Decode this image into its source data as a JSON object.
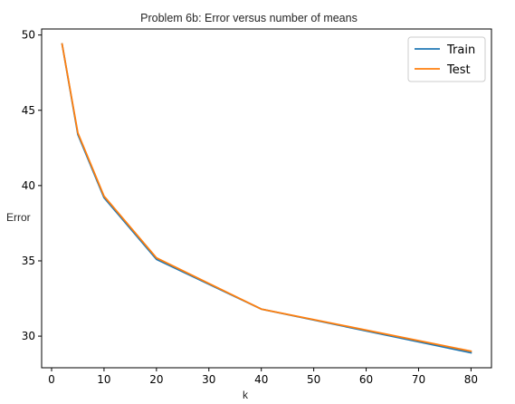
{
  "chart_data": {
    "type": "line",
    "title": "Problem 6b: Error versus number of means",
    "xlabel": "k",
    "ylabel": "Error",
    "xlim": [
      -1.9,
      83.9
    ],
    "ylim": [
      27.9,
      50.4
    ],
    "xticks": [
      0,
      10,
      20,
      30,
      40,
      50,
      60,
      70,
      80
    ],
    "yticks": [
      30,
      35,
      40,
      45,
      50
    ],
    "grid": false,
    "legend_position": "top-right",
    "series": [
      {
        "name": "Train",
        "color": "#1f77b4",
        "x": [
          2,
          5,
          10,
          20,
          40,
          80
        ],
        "y": [
          49.4,
          43.4,
          39.2,
          35.1,
          31.8,
          28.9
        ]
      },
      {
        "name": "Test",
        "color": "#ff7f0e",
        "x": [
          2,
          5,
          10,
          20,
          40,
          80
        ],
        "y": [
          49.4,
          43.5,
          39.3,
          35.2,
          31.8,
          29.0
        ]
      }
    ]
  }
}
